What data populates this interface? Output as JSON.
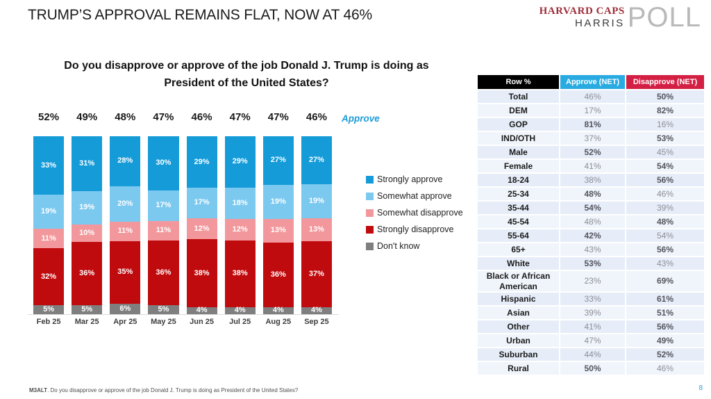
{
  "title": "TRUMP’S APPROVAL REMAINS FLAT, NOW AT 46%",
  "logo": {
    "line1": "HARVARD CAPS",
    "line2": "HARRIS",
    "word": "POLL"
  },
  "chart_data": {
    "type": "bar",
    "stacked": true,
    "title": "Do you disapprove or approve of the job Donald J. Trump is doing as President of the United States?",
    "categories": [
      "Feb 25",
      "Mar 25",
      "Apr 25",
      "May 25",
      "Jun 25",
      "Jul 25",
      "Aug 25",
      "Sep 25"
    ],
    "approve_net_labels": [
      "52%",
      "49%",
      "48%",
      "47%",
      "46%",
      "47%",
      "47%",
      "46%"
    ],
    "approve_axis_label": "Approve",
    "ylim": [
      0,
      100
    ],
    "grid": false,
    "legend_position": "right",
    "series": [
      {
        "name": "Strongly approve",
        "color": "#149bd8",
        "values": [
          33,
          31,
          28,
          30,
          29,
          29,
          27,
          27
        ]
      },
      {
        "name": "Somewhat approve",
        "color": "#7cc9f0",
        "values": [
          19,
          19,
          20,
          17,
          17,
          18,
          19,
          19
        ]
      },
      {
        "name": "Somewhat disapprove",
        "color": "#f2989c",
        "values": [
          11,
          10,
          11,
          11,
          12,
          12,
          13,
          13
        ]
      },
      {
        "name": "Strongly disapprove",
        "color": "#c00b0e",
        "values": [
          32,
          36,
          35,
          36,
          38,
          38,
          36,
          37
        ]
      },
      {
        "name": "Don't know",
        "color": "#7f7f7f",
        "values": [
          5,
          5,
          6,
          5,
          4,
          4,
          4,
          4
        ]
      }
    ]
  },
  "table": {
    "headers": [
      {
        "label": "Row %",
        "bg": "#000000"
      },
      {
        "label": "Approve (NET)",
        "bg": "#29abe2"
      },
      {
        "label": "Disapprove (NET)",
        "bg": "#d41f44"
      }
    ],
    "rows": [
      {
        "label": "Total",
        "approve": "46%",
        "disapprove": "50%",
        "bold": "disapprove"
      },
      {
        "label": "DEM",
        "approve": "17%",
        "disapprove": "82%",
        "bold": "disapprove"
      },
      {
        "label": "GOP",
        "approve": "81%",
        "disapprove": "16%",
        "bold": "approve"
      },
      {
        "label": "IND/OTH",
        "approve": "37%",
        "disapprove": "53%",
        "bold": "disapprove"
      },
      {
        "label": "Male",
        "approve": "52%",
        "disapprove": "45%",
        "bold": "approve"
      },
      {
        "label": "Female",
        "approve": "41%",
        "disapprove": "54%",
        "bold": "disapprove"
      },
      {
        "label": "18-24",
        "approve": "38%",
        "disapprove": "56%",
        "bold": "disapprove"
      },
      {
        "label": "25-34",
        "approve": "48%",
        "disapprove": "46%",
        "bold": "approve"
      },
      {
        "label": "35-44",
        "approve": "54%",
        "disapprove": "39%",
        "bold": "approve"
      },
      {
        "label": "45-54",
        "approve": "48%",
        "disapprove": "48%",
        "bold": "disapprove"
      },
      {
        "label": "55-64",
        "approve": "42%",
        "disapprove": "54%",
        "bold": "approve"
      },
      {
        "label": "65+",
        "approve": "43%",
        "disapprove": "56%",
        "bold": "disapprove"
      },
      {
        "label": "White",
        "approve": "53%",
        "disapprove": "43%",
        "bold": "approve"
      },
      {
        "label": "Black or African American",
        "approve": "23%",
        "disapprove": "69%",
        "bold": "disapprove"
      },
      {
        "label": "Hispanic",
        "approve": "33%",
        "disapprove": "61%",
        "bold": "disapprove"
      },
      {
        "label": "Asian",
        "approve": "39%",
        "disapprove": "51%",
        "bold": "disapprove"
      },
      {
        "label": "Other",
        "approve": "41%",
        "disapprove": "56%",
        "bold": "disapprove"
      },
      {
        "label": "Urban",
        "approve": "47%",
        "disapprove": "49%",
        "bold": "disapprove"
      },
      {
        "label": "Suburban",
        "approve": "44%",
        "disapprove": "52%",
        "bold": "disapprove"
      },
      {
        "label": "Rural",
        "approve": "50%",
        "disapprove": "46%",
        "bold": "approve"
      }
    ]
  },
  "footer": {
    "code": "M3ALT",
    "text": ". Do you disapprove or approve of the job Donald J. Trump is doing as President of the United States?",
    "page": "8"
  }
}
